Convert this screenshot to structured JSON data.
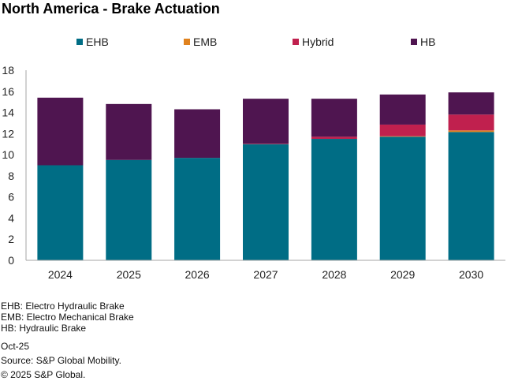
{
  "chart_data": {
    "type": "bar",
    "stacked": true,
    "title": "North America - Brake Actuation",
    "xlabel": "",
    "ylabel": "",
    "ylim": [
      0,
      18
    ],
    "yticks": [
      0,
      2,
      4,
      6,
      8,
      10,
      12,
      14,
      16,
      18
    ],
    "grid": false,
    "legend_position": "top",
    "categories": [
      "2024",
      "2025",
      "2026",
      "2027",
      "2028",
      "2029",
      "2030"
    ],
    "series": [
      {
        "name": "EHB",
        "color": "#006D85",
        "values": [
          9.0,
          9.5,
          9.7,
          11.0,
          11.5,
          11.7,
          12.15
        ]
      },
      {
        "name": "EMB",
        "color": "#E0821E",
        "values": [
          0.0,
          0.0,
          0.0,
          0.0,
          0.0,
          0.05,
          0.15
        ]
      },
      {
        "name": "Hybrid",
        "color": "#C0204E",
        "values": [
          0.0,
          0.0,
          0.0,
          0.05,
          0.2,
          1.1,
          1.5
        ]
      },
      {
        "name": "HB",
        "color": "#4F1550",
        "values": [
          6.4,
          5.3,
          4.6,
          4.25,
          3.6,
          2.85,
          2.1
        ]
      }
    ]
  },
  "footer": {
    "definitions": [
      "EHB: Electro Hydraulic Brake",
      "EMB: Electro Mechanical Brake",
      "HB: Hydraulic Brake"
    ],
    "date": "Oct-25",
    "source": "Source: S&P Global Mobility.",
    "copyright": "© 2025 S&P Global."
  }
}
